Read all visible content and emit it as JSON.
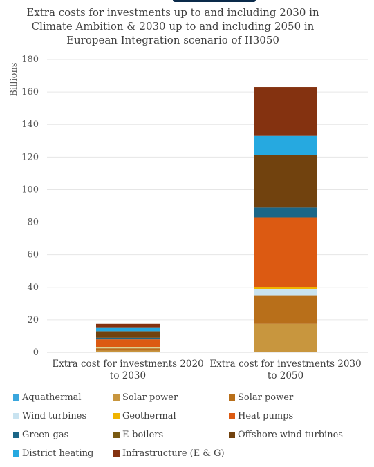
{
  "chart_data": {
    "type": "bar",
    "stacked": true,
    "title": "Extra costs for investments up to and including 2030 in Climate Ambition & 2030 up to and including 2050 in European Integration scenario of II3050",
    "ylabel": "Billions",
    "ylim": [
      0,
      180
    ],
    "yticks": [
      0,
      20,
      40,
      60,
      80,
      100,
      120,
      140,
      160,
      180
    ],
    "grid": true,
    "legend_position": "bottom",
    "categories": [
      "Extra cost for investments 2020 to 2030",
      "Extra cost for investments 2030 to 2050"
    ],
    "series": [
      {
        "name": "Aquathermal",
        "color": "#3aa6dd",
        "values": [
          0,
          0
        ]
      },
      {
        "name": "Solar power",
        "color": "#c8963e",
        "values": [
          1.0,
          17.5
        ]
      },
      {
        "name": "Solar power",
        "color": "#b86f1a",
        "values": [
          1.5,
          17.5
        ]
      },
      {
        "name": "Wind turbines",
        "color": "#c9e3f0",
        "values": [
          0.3,
          4.0
        ]
      },
      {
        "name": "Geothermal",
        "color": "#f0b400",
        "values": [
          0.2,
          1.0
        ]
      },
      {
        "name": "Heat pumps",
        "color": "#dc5a12",
        "values": [
          5.0,
          43.0
        ]
      },
      {
        "name": "Green gas",
        "color": "#1b6687",
        "values": [
          1.0,
          6.0
        ]
      },
      {
        "name": "E-boilers",
        "color": "#7a5a12",
        "values": [
          0,
          0
        ]
      },
      {
        "name": "Offshore wind turbines",
        "color": "#71420e",
        "values": [
          4.0,
          32.0
        ]
      },
      {
        "name": "District heating",
        "color": "#26a9e0",
        "values": [
          2.0,
          12.0
        ]
      },
      {
        "name": "Infrastructure (E & G)",
        "color": "#843210",
        "values": [
          2.5,
          30.0
        ]
      }
    ]
  }
}
